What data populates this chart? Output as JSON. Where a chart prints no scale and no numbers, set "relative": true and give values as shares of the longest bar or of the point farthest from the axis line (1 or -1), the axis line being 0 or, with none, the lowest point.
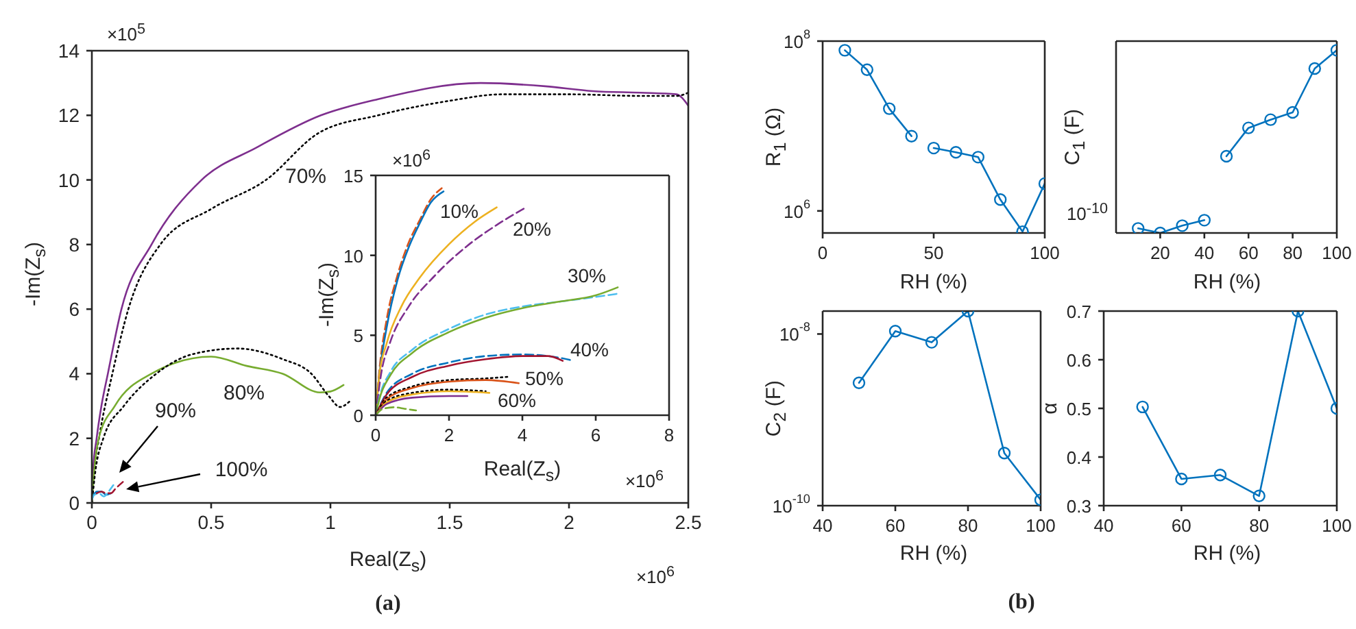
{
  "chart_data": [
    {
      "type": "line",
      "xlabel": "Real(Z$_{s}$)",
      "ylabel": "-Im(Z$_{s}$)",
      "xlim": [
        0,
        2.5
      ],
      "xticks": [
        0,
        0.5,
        1,
        1.5,
        2,
        2.5
      ],
      "ylim": [
        0,
        14
      ],
      "yticks": [
        0,
        2,
        4,
        6,
        8,
        10,
        12,
        14
      ],
      "marker": "none",
      "annotations": [
        "×10$^{5}$",
        "×10$^{6}$",
        "(a)",
        "70%",
        "80%",
        "90%",
        "100%"
      ],
      "series": [
        {
          "color": "#7e2f8e",
          "line_style": "solid",
          "x": [
            0,
            0.005,
            0.02,
            0.04,
            0.067,
            0.124,
            0.25,
            0.46,
            0.69,
            0.96,
            1.2,
            1.63,
            1.9,
            2.1,
            2.3,
            2.45,
            2.5
          ],
          "values": [
            0,
            1,
            2,
            3,
            4,
            6,
            8,
            10,
            11,
            12,
            12.5,
            13,
            12.9,
            12.75,
            12.7,
            12.65,
            12.3
          ]
        },
        {
          "color": "#000000",
          "line_style": "dotted",
          "x": [
            0,
            0.01,
            0.03,
            0.086,
            0.153,
            0.287,
            0.5,
            0.73,
            0.95,
            1.2,
            1.5,
            1.72,
            2.0,
            2.3,
            2.45,
            2.5
          ],
          "values": [
            0,
            1,
            2,
            4,
            6,
            8,
            9.1,
            10,
            11.45,
            12,
            12.45,
            12.65,
            12.65,
            12.6,
            12.6,
            12.7
          ]
        },
        {
          "color": "#77ac30",
          "line_style": "solid",
          "x": [
            0,
            0.01,
            0.029,
            0.096,
            0.25,
            0.5,
            0.65,
            0.8,
            0.956,
            1.0,
            1.055
          ],
          "values": [
            0,
            1,
            2,
            3,
            4,
            4.53,
            4.24,
            4.0,
            3.42,
            3.45,
            3.65
          ]
        },
        {
          "color": "#000000",
          "line_style": "dotted",
          "x": [
            0,
            0.015,
            0.048,
            0.134,
            0.27,
            0.42,
            0.61,
            0.8,
            0.92,
            0.994,
            1.04,
            1.08
          ],
          "values": [
            0,
            1,
            2,
            3,
            4,
            4.6,
            4.78,
            4.45,
            4.0,
            3.3,
            2.97,
            3.14
          ]
        },
        {
          "color": "#0072bd",
          "line_style": "solid",
          "x": [
            0,
            0.02,
            0.04,
            0.06,
            0.08
          ],
          "values": [
            0.15,
            0.35,
            0.35,
            0.25,
            0.3
          ]
        },
        {
          "color": "#4dbeee",
          "line_style": "dashed",
          "x": [
            0,
            0.01,
            0.03,
            0.05,
            0.07,
            0.09
          ],
          "values": [
            0.1,
            0.25,
            0.3,
            0.2,
            0.35,
            0.55
          ]
        },
        {
          "color": "#a2142f",
          "line_style": "dashed",
          "x": [
            0.02,
            0.04,
            0.06,
            0.08,
            0.1,
            0.13
          ],
          "values": [
            0.3,
            0.35,
            0.3,
            0.3,
            0.45,
            0.65
          ]
        }
      ]
    },
    {
      "type": "line",
      "xlabel": "Real(Z$_{s}$)",
      "ylabel": "-Im(Z$_{s}$)",
      "xlim": [
        0,
        8
      ],
      "xticks": [
        0,
        2,
        4,
        6,
        8
      ],
      "ylim": [
        0,
        15
      ],
      "yticks": [
        0,
        5,
        10,
        15
      ],
      "marker": "none",
      "annotations": [
        "×10$^{6}$",
        "×10$^{6}$",
        "10%",
        "20%",
        "30%",
        "40%",
        "50%",
        "60%"
      ],
      "series": [
        {
          "color": "#d95319",
          "line_style": "dashed",
          "x": [
            0,
            0.1,
            0.3,
            0.6,
            0.9,
            1.2,
            1.5,
            1.8
          ],
          "values": [
            0,
            2.8,
            6,
            8.8,
            10.8,
            12.2,
            13.5,
            14.2
          ]
        },
        {
          "color": "#0072bd",
          "line_style": "solid",
          "x": [
            0,
            0.1,
            0.3,
            0.6,
            0.9,
            1.2,
            1.5,
            1.85
          ],
          "values": [
            0,
            2.5,
            5.5,
            8.5,
            10.5,
            12,
            13.3,
            14
          ]
        },
        {
          "color": "#edb120",
          "line_style": "solid",
          "x": [
            0,
            0.1,
            0.3,
            0.7,
            1.2,
            2,
            2.7,
            3.3
          ],
          "values": [
            0,
            2.5,
            4.5,
            6.8,
            8.6,
            10.7,
            12.1,
            13
          ]
        },
        {
          "color": "#7e2f8e",
          "line_style": "dashed",
          "x": [
            0,
            0.15,
            0.4,
            0.9,
            1.6,
            2.5,
            3.3,
            4.1
          ],
          "values": [
            0,
            2.6,
            4.6,
            6.8,
            8.7,
            10.6,
            11.9,
            13
          ]
        },
        {
          "color": "#4dbeee",
          "line_style": "dashed",
          "x": [
            0,
            0.1,
            0.4,
            1,
            2,
            3,
            4,
            5,
            6,
            6.6
          ],
          "values": [
            0,
            1.1,
            2.7,
            4.1,
            5.4,
            6.3,
            6.8,
            7.1,
            7.4,
            7.6
          ]
        },
        {
          "color": "#77ac30",
          "line_style": "solid",
          "x": [
            0,
            0.1,
            0.4,
            1,
            2,
            3,
            4,
            5,
            6,
            6.6
          ],
          "values": [
            0,
            1,
            2.5,
            3.9,
            5.2,
            6.1,
            6.7,
            7.1,
            7.5,
            8
          ]
        },
        {
          "color": "#0072bd",
          "line_style": "dashed",
          "x": [
            0,
            0.3,
            1,
            2,
            3,
            4,
            5,
            5.4
          ],
          "values": [
            0,
            1.4,
            2.6,
            3.3,
            3.7,
            3.8,
            3.6,
            3.4
          ]
        },
        {
          "color": "#a2142f",
          "line_style": "solid",
          "x": [
            0,
            0.3,
            1,
            2,
            3,
            4,
            4.7,
            5.1
          ],
          "values": [
            0,
            1.3,
            2.4,
            3.1,
            3.5,
            3.7,
            3.7,
            3.4
          ]
        },
        {
          "color": "#000000",
          "line_style": "dotted",
          "x": [
            0,
            0.3,
            1,
            2,
            3,
            3.6
          ],
          "values": [
            0,
            1.1,
            1.8,
            2.2,
            2.3,
            2.4
          ]
        },
        {
          "color": "#d95319",
          "line_style": "solid",
          "x": [
            0,
            0.3,
            1,
            2,
            3,
            3.9
          ],
          "values": [
            0,
            1,
            1.7,
            2.1,
            2.2,
            2.0
          ]
        },
        {
          "color": "#000000",
          "line_style": "dotted",
          "x": [
            0,
            0.3,
            1,
            2,
            3
          ],
          "values": [
            0,
            0.9,
            1.4,
            1.6,
            1.5
          ]
        },
        {
          "color": "#edb120",
          "line_style": "solid",
          "x": [
            0,
            0.3,
            1,
            2,
            3.1
          ],
          "values": [
            0,
            0.8,
            1.3,
            1.5,
            1.4
          ]
        },
        {
          "color": "#7e2f8e",
          "line_style": "solid",
          "x": [
            0,
            0.3,
            1,
            2,
            2.5
          ],
          "values": [
            0,
            0.7,
            1.1,
            1.2,
            1.2
          ]
        },
        {
          "color": "#77ac30",
          "line_style": "dashed",
          "x": [
            0,
            0.2,
            0.5,
            0.8,
            1.1
          ],
          "values": [
            0,
            0.4,
            0.5,
            0.4,
            0.3
          ]
        }
      ]
    },
    {
      "type": "line",
      "xlabel": "RH (%)",
      "ylabel": "R$_{1}$ (Ω)",
      "log": "y",
      "xlim": [
        0,
        100
      ],
      "xticks": [
        0,
        50,
        100
      ],
      "ylim": [
        550000,
        100000000
      ],
      "yticks": [
        {
          "value": 1000000,
          "label": "10$^{6}$"
        },
        {
          "value": 100000000,
          "label": "10$^{8}$"
        }
      ],
      "marker": "circle",
      "series": [
        {
          "color": "#0072bd",
          "x": [
            10,
            20,
            30,
            40
          ],
          "values": [
            78000000,
            46000000,
            16000000,
            7600000
          ]
        },
        {
          "color": "#0072bd",
          "x": [
            50,
            60,
            70,
            80,
            90,
            100
          ],
          "values": [
            5500000,
            4900000,
            4300000,
            1360000,
            570000,
            2100000
          ]
        }
      ]
    },
    {
      "type": "line",
      "xlabel": "RH (%)",
      "ylabel": "C$_{1}$ (F)",
      "relative": true,
      "xlim": [
        0,
        100
      ],
      "xticks": [
        20,
        40,
        60,
        80,
        100
      ],
      "marker": "circle",
      "annotations": [
        "10$^{-10}$"
      ],
      "series": [
        {
          "color": "#0072bd",
          "x": [
            10,
            20,
            30,
            40
          ],
          "values": [
            0.025,
            0,
            0.04,
            0.07
          ]
        },
        {
          "color": "#0072bd",
          "x": [
            50,
            60,
            70,
            80,
            90,
            100
          ],
          "values": [
            0.42,
            0.575,
            0.62,
            0.66,
            0.9,
            1
          ]
        }
      ]
    },
    {
      "type": "line",
      "xlabel": "RH (%)",
      "ylabel": "C$_{2}$ (F)",
      "log": "y",
      "xlim": [
        40,
        100
      ],
      "xticks": [
        40,
        60,
        80,
        100
      ],
      "ylim": [
        1e-10,
        1.85e-08
      ],
      "yticks": [
        {
          "value": 1e-10,
          "label": "10$^{-10}$"
        },
        {
          "value": 1e-08,
          "label": "10$^{-8}$"
        }
      ],
      "marker": "circle",
      "annotations": [
        "(b)"
      ],
      "series": [
        {
          "color": "#0072bd",
          "x": [
            50,
            60,
            70,
            80,
            90,
            100
          ],
          "values": [
            2.7e-09,
            1.08e-08,
            8e-09,
            1.85e-08,
            4.1e-10,
            1.17e-10
          ]
        }
      ]
    },
    {
      "type": "line",
      "xlabel": "RH (%)",
      "ylabel": "α",
      "xlim": [
        40,
        100
      ],
      "xticks": [
        40,
        60,
        80,
        100
      ],
      "ylim": [
        0.3,
        0.7
      ],
      "yticks": [
        0.3,
        0.4,
        0.5,
        0.6,
        0.7
      ],
      "marker": "circle",
      "series": [
        {
          "color": "#0072bd",
          "x": [
            50,
            60,
            70,
            80,
            90,
            100
          ],
          "values": [
            0.503,
            0.355,
            0.363,
            0.32,
            0.7,
            0.5
          ]
        }
      ]
    }
  ]
}
